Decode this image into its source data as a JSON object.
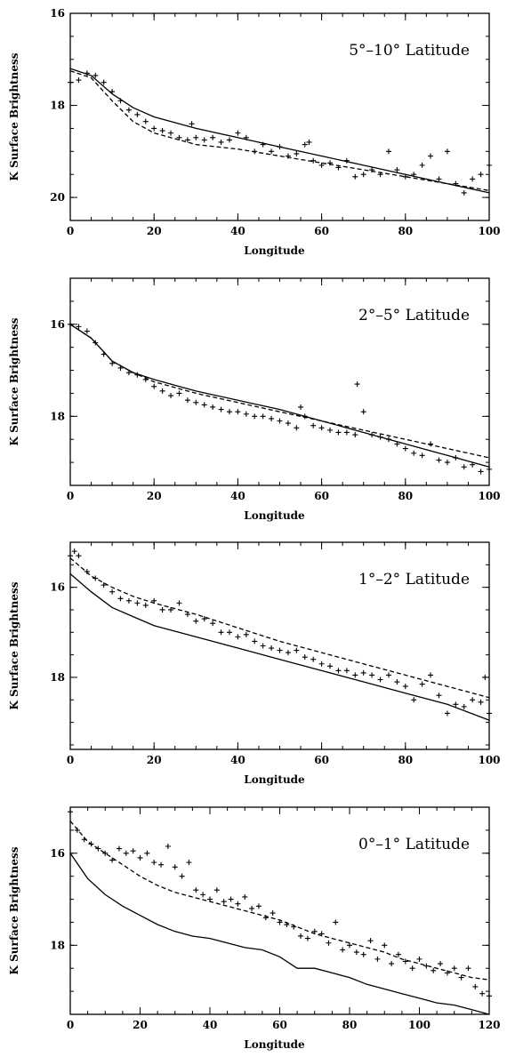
{
  "chart_data": [
    {
      "type": "scatter",
      "title": "5°–10° Latitude",
      "xlabel": "Longitude",
      "ylabel": "K Surface Brightness",
      "xlim": [
        0,
        100
      ],
      "ylim": [
        20.5,
        16
      ],
      "xticks": [
        0,
        20,
        40,
        60,
        80,
        100
      ],
      "xtick_labels": [
        "0",
        "20",
        "40",
        "60",
        "80",
        "100"
      ],
      "yticks": [
        16,
        18,
        20
      ],
      "ytick_labels": [
        "16",
        "18",
        "20"
      ],
      "series": [
        {
          "style": "crosses",
          "x": [
            0,
            2,
            4,
            6,
            8,
            10,
            12,
            14,
            16,
            18,
            20,
            22,
            24,
            26,
            28,
            29,
            30,
            32,
            34,
            36,
            38,
            40,
            42,
            44,
            46,
            48,
            50,
            52,
            54,
            56,
            57,
            58,
            60,
            62,
            64,
            66,
            68,
            70,
            72,
            74,
            76,
            78,
            80,
            82,
            84,
            86,
            88,
            90,
            92,
            94,
            96,
            98,
            100
          ],
          "y": [
            17.5,
            17.45,
            17.3,
            17.35,
            17.5,
            17.7,
            17.9,
            18.1,
            18.2,
            18.35,
            18.5,
            18.55,
            18.6,
            18.7,
            18.75,
            18.4,
            18.7,
            18.75,
            18.7,
            18.8,
            18.75,
            18.6,
            18.7,
            19.0,
            18.85,
            19.0,
            18.9,
            19.1,
            19.05,
            18.85,
            18.8,
            19.2,
            19.3,
            19.25,
            19.35,
            19.2,
            19.55,
            19.5,
            19.4,
            19.5,
            19.0,
            19.4,
            19.55,
            19.5,
            19.3,
            19.1,
            19.6,
            19.0,
            19.7,
            19.9,
            19.6,
            19.5,
            19.3
          ]
        },
        {
          "style": "solid",
          "x": [
            0,
            5,
            10,
            15,
            20,
            30,
            40,
            50,
            60,
            70,
            80,
            90,
            100
          ],
          "y": [
            17.2,
            17.35,
            17.75,
            18.05,
            18.25,
            18.5,
            18.7,
            18.9,
            19.1,
            19.3,
            19.5,
            19.7,
            19.9
          ]
        },
        {
          "style": "dashed",
          "x": [
            0,
            5,
            10,
            15,
            20,
            30,
            40,
            50,
            60,
            70,
            80,
            90,
            100
          ],
          "y": [
            17.25,
            17.4,
            17.9,
            18.35,
            18.6,
            18.85,
            18.95,
            19.1,
            19.25,
            19.4,
            19.55,
            19.7,
            19.85
          ]
        }
      ]
    },
    {
      "type": "scatter",
      "title": "2°–5° Latitude",
      "xlabel": "Longitude",
      "ylabel": "K Surface Brightness",
      "xlim": [
        0,
        100
      ],
      "ylim": [
        19.5,
        15
      ],
      "xticks": [
        0,
        20,
        40,
        60,
        80,
        100
      ],
      "xtick_labels": [
        "0",
        "20",
        "40",
        "60",
        "80",
        "100"
      ],
      "yticks": [
        16,
        18
      ],
      "ytick_labels": [
        "16",
        "18"
      ],
      "series": [
        {
          "style": "crosses",
          "x": [
            0,
            2,
            4,
            6,
            8,
            10,
            12,
            14,
            16,
            18,
            20,
            22,
            24,
            26,
            28,
            30,
            32,
            34,
            36,
            38,
            40,
            42,
            44,
            46,
            48,
            50,
            52,
            54,
            55,
            56,
            58,
            60,
            62,
            64,
            66,
            68,
            68.5,
            70,
            72,
            74,
            76,
            78,
            80,
            82,
            84,
            86,
            88,
            90,
            92,
            94,
            96,
            98,
            100
          ],
          "y": [
            16.0,
            16.05,
            16.15,
            16.4,
            16.65,
            16.85,
            16.95,
            17.05,
            17.1,
            17.2,
            17.35,
            17.45,
            17.55,
            17.5,
            17.65,
            17.7,
            17.75,
            17.8,
            17.85,
            17.9,
            17.9,
            17.95,
            18.0,
            18.0,
            18.05,
            18.1,
            18.15,
            18.25,
            17.8,
            18.0,
            18.2,
            18.25,
            18.3,
            18.35,
            18.35,
            18.4,
            17.3,
            17.9,
            18.4,
            18.45,
            18.5,
            18.6,
            18.7,
            18.8,
            18.85,
            18.6,
            18.95,
            19.0,
            18.9,
            19.1,
            19.05,
            19.2,
            19.15
          ]
        },
        {
          "style": "solid",
          "x": [
            0,
            5,
            10,
            15,
            20,
            30,
            40,
            50,
            60,
            70,
            80,
            90,
            100
          ],
          "y": [
            16.0,
            16.3,
            16.8,
            17.05,
            17.2,
            17.45,
            17.65,
            17.85,
            18.1,
            18.35,
            18.6,
            18.85,
            19.1
          ]
        },
        {
          "style": "dashed",
          "x": [
            0,
            5,
            10,
            15,
            20,
            30,
            40,
            50,
            60,
            70,
            80,
            90,
            100
          ],
          "y": [
            16.0,
            16.3,
            16.8,
            17.05,
            17.25,
            17.5,
            17.7,
            17.9,
            18.1,
            18.3,
            18.5,
            18.7,
            18.9
          ]
        }
      ]
    },
    {
      "type": "scatter",
      "title": "1°–2° Latitude",
      "xlabel": "Longitude",
      "ylabel": "K Surface Brightness",
      "xlim": [
        0,
        100
      ],
      "ylim": [
        19.6,
        15
      ],
      "xticks": [
        0,
        20,
        40,
        60,
        80,
        100
      ],
      "xtick_labels": [
        "0",
        "20",
        "40",
        "60",
        "80",
        "100"
      ],
      "yticks": [
        16,
        18
      ],
      "ytick_labels": [
        "16",
        "18"
      ],
      "series": [
        {
          "style": "crosses",
          "x": [
            0,
            1,
            2,
            4,
            6,
            8,
            10,
            12,
            14,
            16,
            18,
            20,
            22,
            24,
            26,
            28,
            30,
            32,
            34,
            36,
            38,
            40,
            42,
            44,
            46,
            48,
            50,
            52,
            54,
            56,
            58,
            60,
            62,
            64,
            66,
            68,
            70,
            72,
            74,
            76,
            78,
            80,
            82,
            84,
            86,
            88,
            90,
            92,
            94,
            96,
            98,
            99,
            100
          ],
          "y": [
            15.3,
            15.2,
            15.3,
            15.65,
            15.8,
            15.95,
            16.1,
            16.25,
            16.3,
            16.35,
            16.4,
            16.3,
            16.5,
            16.5,
            16.35,
            16.6,
            16.75,
            16.7,
            16.8,
            17.0,
            17.0,
            17.1,
            17.05,
            17.2,
            17.3,
            17.35,
            17.4,
            17.45,
            17.4,
            17.55,
            17.6,
            17.7,
            17.75,
            17.85,
            17.85,
            17.95,
            17.9,
            17.95,
            18.05,
            17.95,
            18.1,
            18.2,
            18.5,
            18.15,
            17.95,
            18.4,
            18.8,
            18.6,
            18.65,
            18.5,
            18.55,
            18.0,
            18.8
          ]
        },
        {
          "style": "solid",
          "x": [
            0,
            5,
            10,
            15,
            20,
            30,
            40,
            50,
            60,
            70,
            80,
            90,
            100
          ],
          "y": [
            15.7,
            16.1,
            16.45,
            16.65,
            16.85,
            17.1,
            17.35,
            17.6,
            17.85,
            18.1,
            18.35,
            18.6,
            18.95
          ]
        },
        {
          "style": "dashed",
          "x": [
            0,
            5,
            10,
            15,
            20,
            30,
            40,
            50,
            60,
            70,
            80,
            90,
            100
          ],
          "y": [
            15.35,
            15.75,
            16.0,
            16.2,
            16.35,
            16.6,
            16.9,
            17.2,
            17.45,
            17.7,
            17.95,
            18.2,
            18.45
          ]
        }
      ]
    },
    {
      "type": "scatter",
      "title": "0°–1° Latitude",
      "xlabel": "Longitude",
      "ylabel": "K Surface Brightness",
      "xlim": [
        0,
        120
      ],
      "ylim": [
        19.5,
        15
      ],
      "xticks": [
        0,
        20,
        40,
        60,
        80,
        100,
        120
      ],
      "xtick_labels": [
        "0",
        "20",
        "40",
        "60",
        "80",
        "100",
        "120"
      ],
      "yticks": [
        16,
        18
      ],
      "ytick_labels": [
        "16",
        "18"
      ],
      "series": [
        {
          "style": "crosses",
          "x": [
            0,
            2,
            4,
            6,
            8,
            10,
            12,
            14,
            16,
            18,
            20,
            22,
            24,
            26,
            28,
            30,
            32,
            34,
            36,
            38,
            40,
            42,
            44,
            46,
            48,
            50,
            52,
            54,
            56,
            58,
            60,
            62,
            64,
            66,
            68,
            70,
            72,
            74,
            76,
            78,
            80,
            82,
            84,
            86,
            88,
            90,
            92,
            94,
            96,
            98,
            100,
            102,
            104,
            106,
            108,
            110,
            112,
            114,
            116,
            118,
            120
          ],
          "y": [
            15.1,
            15.5,
            15.7,
            15.8,
            15.9,
            16.0,
            16.15,
            15.9,
            16.0,
            15.95,
            16.1,
            16.0,
            16.2,
            16.25,
            15.85,
            16.3,
            16.5,
            16.2,
            16.8,
            16.9,
            17.0,
            16.8,
            17.05,
            17.0,
            17.1,
            16.95,
            17.2,
            17.15,
            17.4,
            17.3,
            17.5,
            17.55,
            17.6,
            17.8,
            17.85,
            17.7,
            17.75,
            17.95,
            17.5,
            18.1,
            18.0,
            18.15,
            18.2,
            17.9,
            18.3,
            18.0,
            18.4,
            18.2,
            18.35,
            18.5,
            18.3,
            18.45,
            18.55,
            18.4,
            18.6,
            18.5,
            18.7,
            18.5,
            18.9,
            19.05,
            19.1
          ]
        },
        {
          "style": "solid",
          "x": [
            0,
            5,
            10,
            15,
            20,
            25,
            30,
            35,
            40,
            45,
            50,
            55,
            60,
            65,
            70,
            75,
            80,
            85,
            90,
            95,
            100,
            105,
            110,
            115,
            120
          ],
          "y": [
            16.0,
            16.55,
            16.9,
            17.15,
            17.35,
            17.55,
            17.7,
            17.8,
            17.85,
            17.95,
            18.05,
            18.1,
            18.25,
            18.5,
            18.5,
            18.6,
            18.7,
            18.85,
            18.95,
            19.05,
            19.15,
            19.25,
            19.3,
            19.4,
            19.5
          ]
        },
        {
          "style": "dashed",
          "x": [
            0,
            5,
            10,
            15,
            20,
            25,
            30,
            35,
            40,
            45,
            50,
            55,
            60,
            65,
            70,
            75,
            80,
            85,
            90,
            95,
            100,
            105,
            110,
            115,
            120
          ],
          "y": [
            15.3,
            15.75,
            16.0,
            16.25,
            16.5,
            16.7,
            16.85,
            16.95,
            17.05,
            17.15,
            17.25,
            17.35,
            17.45,
            17.6,
            17.75,
            17.85,
            17.95,
            18.05,
            18.15,
            18.3,
            18.4,
            18.5,
            18.6,
            18.7,
            18.75
          ]
        }
      ]
    }
  ]
}
